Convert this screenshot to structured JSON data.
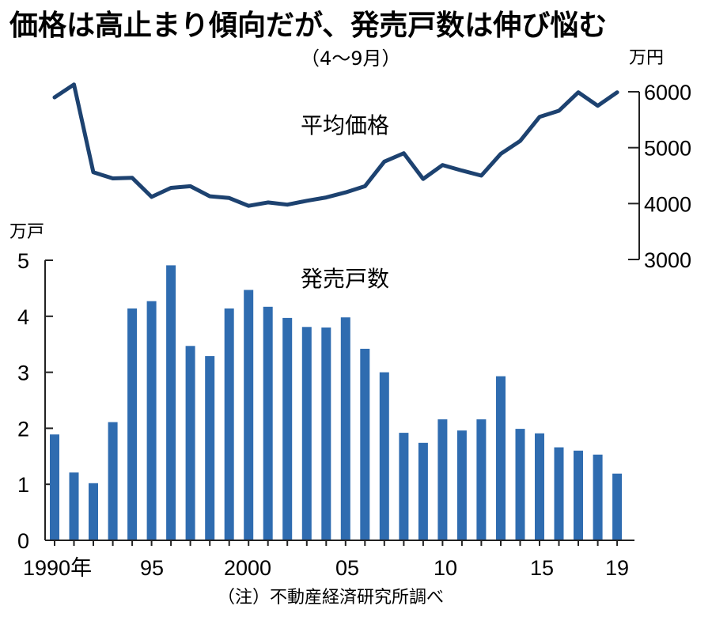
{
  "chart_data": [
    {
      "type": "line",
      "series_name": "平均価格",
      "unit": "万円",
      "ylim": [
        3000,
        6000
      ],
      "yticks": [
        "6000",
        "5000",
        "4000",
        "3000"
      ],
      "x": [
        1990,
        1991,
        1992,
        1993,
        1994,
        1995,
        1996,
        1997,
        1998,
        1999,
        2000,
        2001,
        2002,
        2003,
        2004,
        2005,
        2006,
        2007,
        2008,
        2009,
        2010,
        2011,
        2012,
        2013,
        2014,
        2015,
        2016,
        2017,
        2018,
        2019
      ],
      "values": [
        5900,
        6130,
        4560,
        4450,
        4460,
        4120,
        4280,
        4310,
        4130,
        4100,
        3960,
        4020,
        3980,
        4050,
        4110,
        4200,
        4310,
        4750,
        4900,
        4440,
        4690,
        4590,
        4500,
        4890,
        5120,
        5550,
        5660,
        5990,
        5750,
        5990
      ]
    },
    {
      "type": "bar",
      "series_name": "発売戸数",
      "unit": "万戸",
      "ylim": [
        0,
        5
      ],
      "yticks": [
        "5",
        "4",
        "3",
        "2",
        "1",
        "0"
      ],
      "categories": [
        1990,
        1991,
        1992,
        1993,
        1994,
        1995,
        1996,
        1997,
        1998,
        1999,
        2000,
        2001,
        2002,
        2003,
        2004,
        2005,
        2006,
        2007,
        2008,
        2009,
        2010,
        2011,
        2012,
        2013,
        2014,
        2015,
        2016,
        2017,
        2018,
        2019
      ],
      "values": [
        1.89,
        1.21,
        1.02,
        2.11,
        4.14,
        4.27,
        4.91,
        3.47,
        3.29,
        4.14,
        4.47,
        4.17,
        3.97,
        3.81,
        3.8,
        3.98,
        3.42,
        3.0,
        1.92,
        1.74,
        2.16,
        1.96,
        2.16,
        2.93,
        1.99,
        1.91,
        1.66,
        1.6,
        1.53,
        1.19
      ]
    }
  ],
  "title": "価格は高止まり傾向だが、発売戸数は伸び悩む",
  "subtitle": "（4〜9月）",
  "x_tick_labels": [
    "1990年",
    "95",
    "2000",
    "05",
    "10",
    "15",
    "19"
  ],
  "note": "（注）不動産経済研究所調べ",
  "colors": {
    "bar": "#2f6cb0",
    "line": "#1d4270"
  }
}
